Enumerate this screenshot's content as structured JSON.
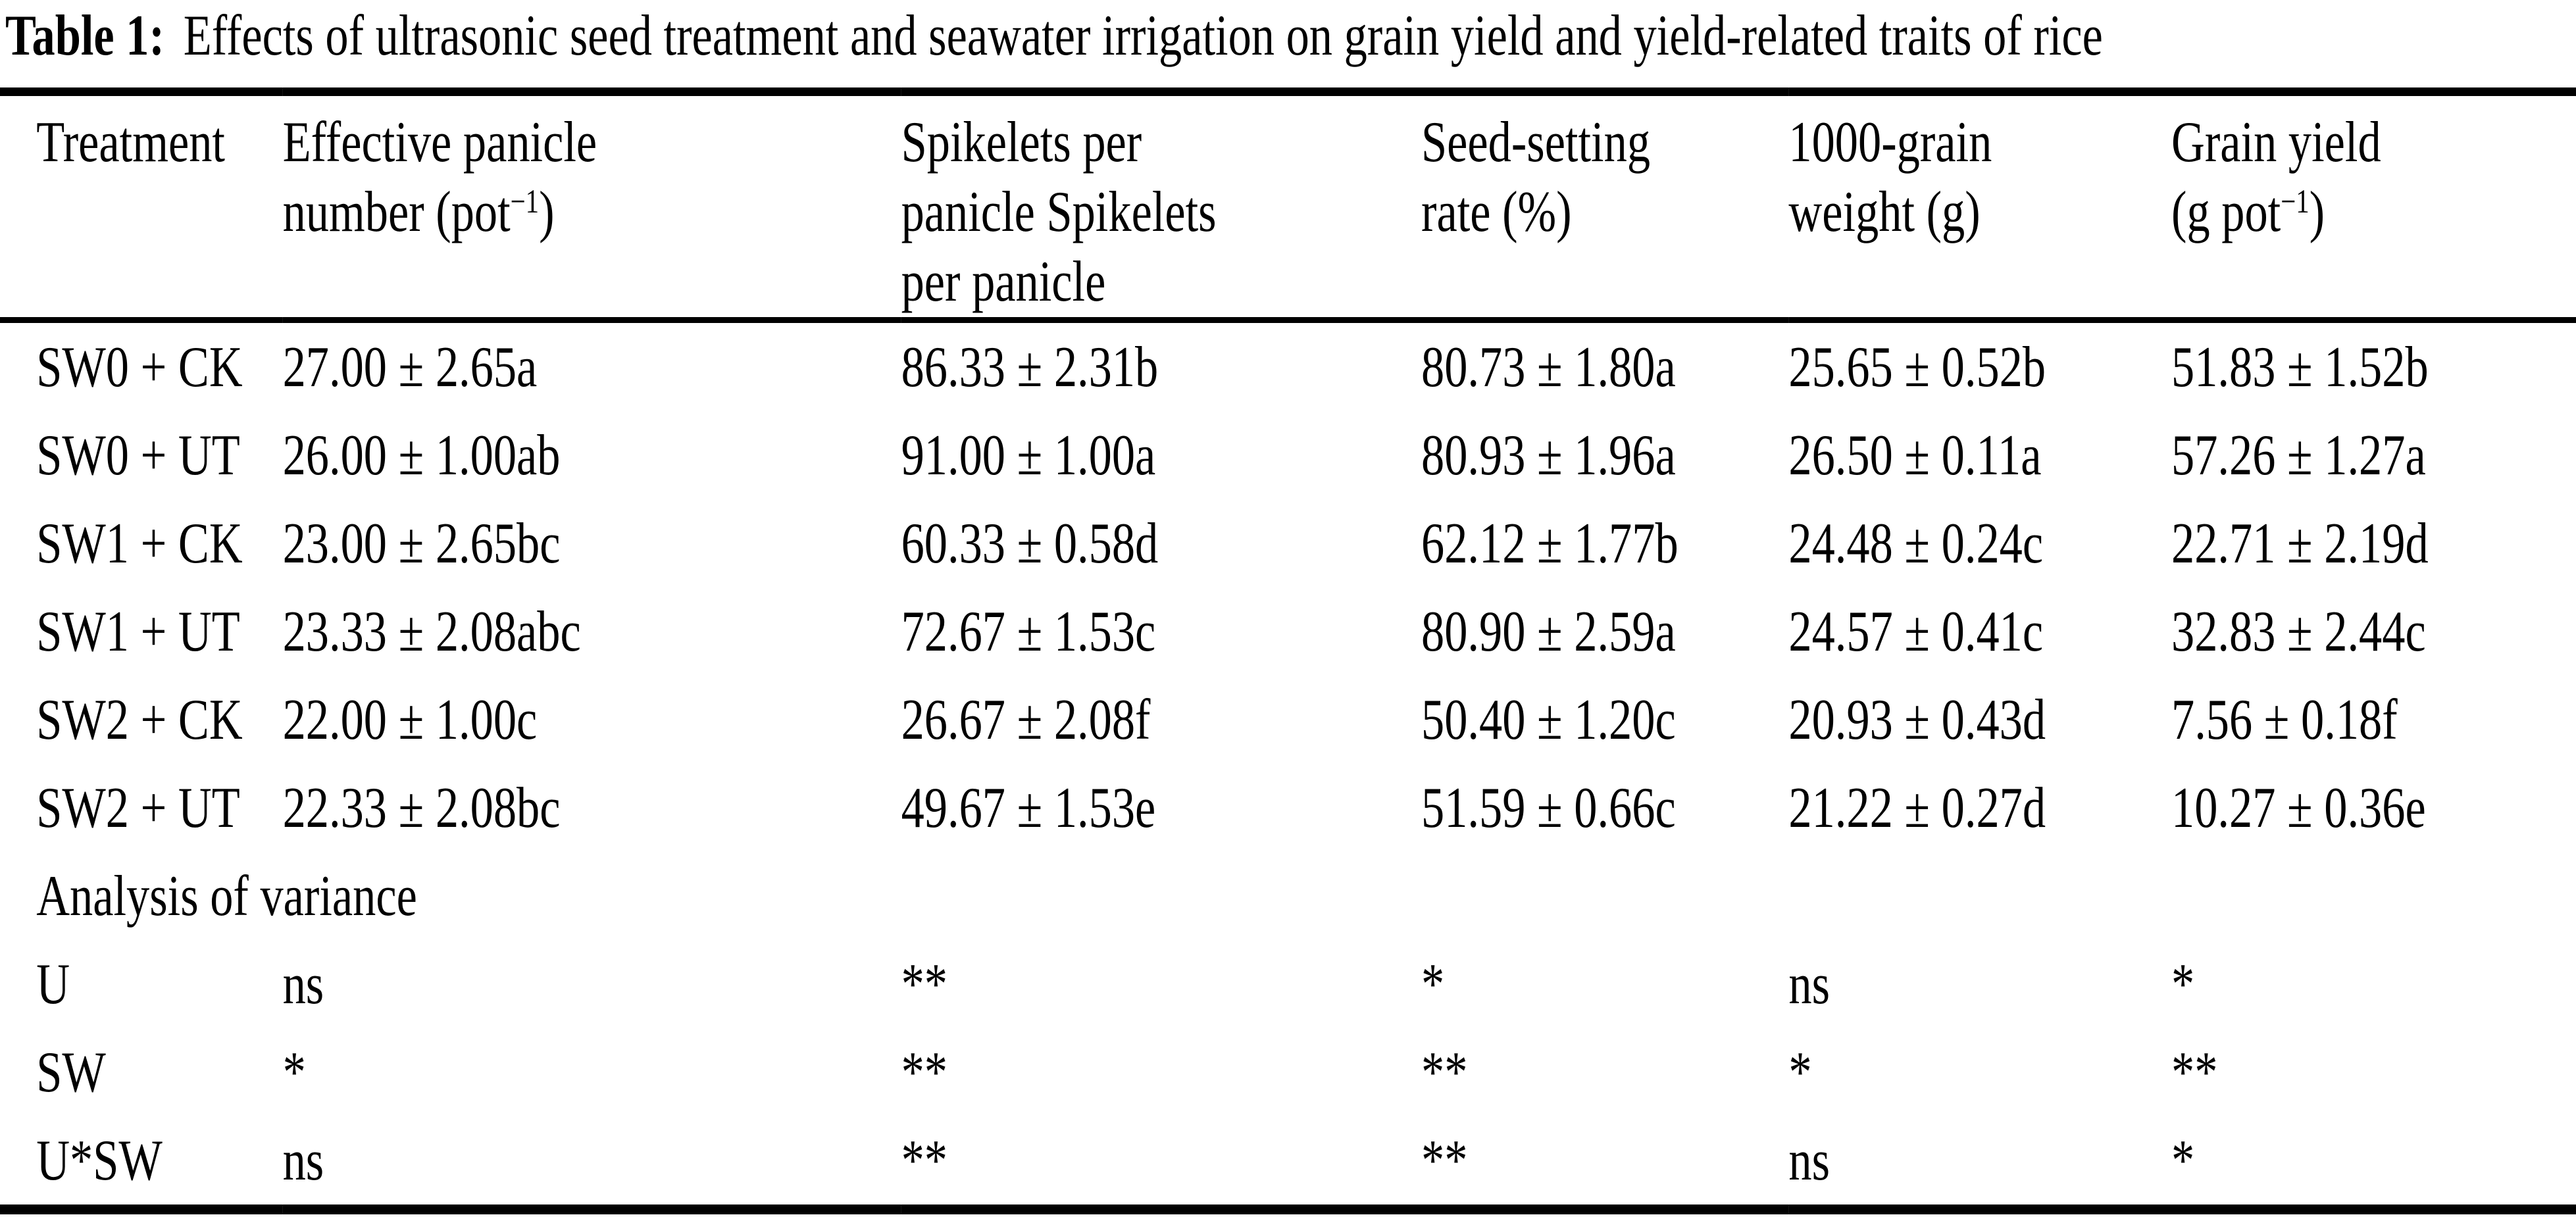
{
  "table": {
    "title_label": "Table 1:",
    "title_text": "Effects of ultrasonic seed treatment and seawater irrigation on grain yield and yield-related traits of rice",
    "header": {
      "col1": "Treatment",
      "col2_line1": "Effective panicle",
      "col2_line2a": "number (pot",
      "col2_sup": "−1",
      "col2_line2b": ")",
      "col3_line1": "Spikelets per",
      "col3_line2": "panicle Spikelets",
      "col3_line3": "per panicle",
      "col4_line1": "Seed-setting",
      "col4_line2": "rate (%)",
      "col5_line1": "1000-grain",
      "col5_line2": "weight (g)",
      "col6_line1": "Grain yield",
      "col6_line2a": "(g pot",
      "col6_sup": "−1",
      "col6_line2b": ")"
    },
    "rows": [
      {
        "cells": [
          "SW0 + CK",
          "27.00 ± 2.65a",
          "86.33 ± 2.31b",
          "80.73 ± 1.80a",
          "25.65 ± 0.52b",
          "51.83 ± 1.52b"
        ]
      },
      {
        "cells": [
          "SW0 + UT",
          "26.00 ± 1.00ab",
          "91.00 ± 1.00a",
          "80.93 ± 1.96a",
          "26.50 ± 0.11a",
          "57.26 ± 1.27a"
        ]
      },
      {
        "cells": [
          "SW1 + CK",
          "23.00 ± 2.65bc",
          "60.33 ± 0.58d",
          "62.12 ± 1.77b",
          "24.48 ± 0.24c",
          "22.71 ± 2.19d"
        ]
      },
      {
        "cells": [
          "SW1 + UT",
          "23.33 ± 2.08abc",
          "72.67 ± 1.53c",
          "80.90 ± 2.59a",
          "24.57 ± 0.41c",
          "32.83 ± 2.44c"
        ]
      },
      {
        "cells": [
          "SW2 + CK",
          "22.00 ± 1.00c",
          "26.67 ± 2.08f",
          "50.40 ± 1.20c",
          "20.93 ± 0.43d",
          "7.56 ± 0.18f"
        ]
      },
      {
        "cells": [
          "SW2 + UT",
          "22.33 ± 2.08bc",
          "49.67 ± 1.53e",
          "51.59 ± 0.66c",
          "21.22 ± 0.27d",
          "10.27 ± 0.36e"
        ]
      }
    ],
    "anova_label": "Analysis of variance",
    "anova_rows": [
      {
        "cells": [
          "U",
          "ns",
          "**",
          "*",
          "ns",
          "*"
        ]
      },
      {
        "cells": [
          "SW",
          "*",
          "**",
          "**",
          "*",
          "**"
        ]
      },
      {
        "cells": [
          "U*SW",
          "ns",
          "**",
          "**",
          "ns",
          "*"
        ]
      }
    ]
  }
}
